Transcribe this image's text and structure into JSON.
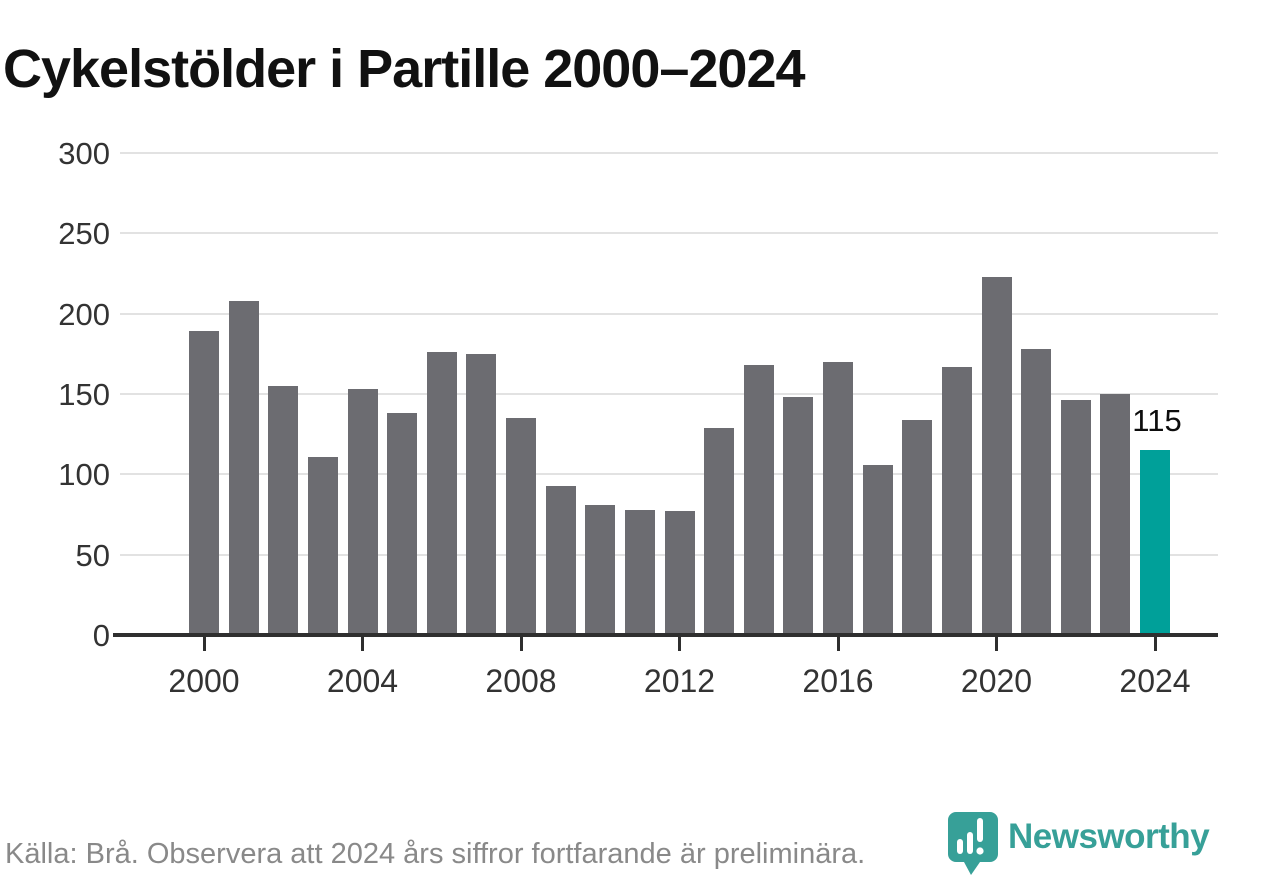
{
  "title": "Cykelstölder i Partille 2000–2024",
  "footer": {
    "source_note": "Källa: Brå. Observera att 2024 års siffror fortfarande är preliminära.",
    "brand": "Newsworthy"
  },
  "colors": {
    "bar": "#6c6c71",
    "highlight": "#00a099",
    "brand": "#37a098",
    "gridline": "#e2e2e2",
    "axis": "#2f2f2f",
    "title_color": "#111111",
    "muted_text": "#898989"
  },
  "chart_data": {
    "type": "bar",
    "title": "Cykelstölder i Partille 2000–2024",
    "x": [
      2000,
      2001,
      2002,
      2003,
      2004,
      2005,
      2006,
      2007,
      2008,
      2009,
      2010,
      2011,
      2012,
      2013,
      2014,
      2015,
      2016,
      2017,
      2018,
      2019,
      2020,
      2021,
      2022,
      2023,
      2024
    ],
    "values": [
      189,
      208,
      155,
      111,
      153,
      138,
      176,
      175,
      135,
      93,
      81,
      78,
      77,
      129,
      168,
      148,
      170,
      106,
      134,
      167,
      223,
      178,
      146,
      150,
      115
    ],
    "highlight_year": 2024,
    "data_label": {
      "year": 2024,
      "text": "115"
    },
    "xlabel": "",
    "ylabel": "",
    "ylim": [
      0,
      300
    ],
    "yticks": [
      0,
      50,
      100,
      150,
      200,
      250,
      300
    ],
    "xticks": [
      2000,
      2004,
      2008,
      2012,
      2016,
      2020,
      2024
    ],
    "grid": true,
    "legend": "none"
  }
}
